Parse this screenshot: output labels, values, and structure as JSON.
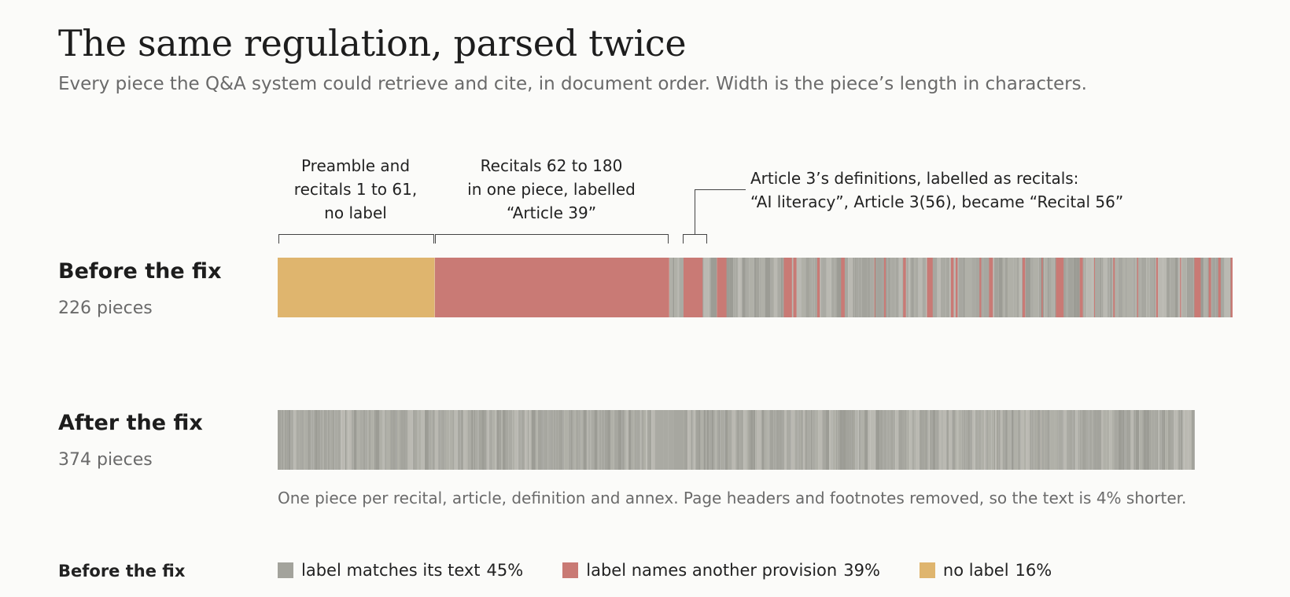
{
  "title": "The same regulation, parsed twice",
  "subtitle": "Every piece the Q&A system could retrieve and cite, in document order. Width is the piece’s length in characters.",
  "colors": {
    "match": "#a3a39c",
    "other": "#c97a75",
    "nolabel": "#dfb56e"
  },
  "chart_data": {
    "type": "bar",
    "rows": [
      {
        "label": "Before the fix",
        "count_text": "226 pieces",
        "pieces": 226,
        "segments": [
          {
            "category": "no label",
            "start_fraction": 0.0,
            "end_fraction": 0.164
          },
          {
            "category": "label names another provision",
            "start_fraction": 0.164,
            "end_fraction": 0.41
          },
          {
            "category": "label names another provision",
            "start_fraction": 0.425,
            "end_fraction": 0.445
          },
          {
            "category": "label names another provision",
            "start_fraction": 0.46,
            "end_fraction": 0.47
          }
        ],
        "total_length_fraction": 1.0
      },
      {
        "label": "After the fix",
        "count_text": "374 pieces",
        "pieces": 374,
        "total_length_fraction": 0.96
      }
    ],
    "annotations": [
      {
        "text_lines": [
          "Preamble and",
          "recitals 1 to 61,",
          "no label"
        ]
      },
      {
        "text_lines": [
          "Recitals 62 to 180",
          "in one piece, labelled",
          "“Article 39”"
        ]
      },
      {
        "text_lines": [
          "Article 3’s definitions, labelled as recitals:",
          "“AI literacy”, Article 3(56), became “Recital 56”"
        ]
      }
    ],
    "after_note": "One piece per recital, article, definition and annex. Page headers and footnotes removed, so the text is 4% shorter.",
    "legend": {
      "title": "Before the fix",
      "items": [
        {
          "label": "label matches its text",
          "percent": "45%",
          "share": 0.45
        },
        {
          "label": "label names another provision",
          "percent": "39%",
          "share": 0.39
        },
        {
          "label": "no label",
          "percent": "16%",
          "share": 0.16
        }
      ]
    }
  }
}
